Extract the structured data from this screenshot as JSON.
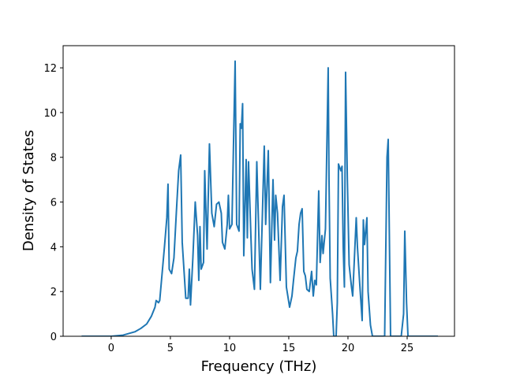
{
  "chart_data": {
    "type": "line",
    "xlabel": "Frequency (THz)",
    "ylabel": "Density of States",
    "color": "#1f77b4",
    "x": [
      -2.5,
      0,
      1,
      2,
      2.5,
      3,
      3.4,
      3.7,
      3.8,
      4.0,
      4.1,
      4.3,
      4.5,
      4.7,
      4.8,
      4.9,
      5.1,
      5.3,
      5.5,
      5.7,
      5.87,
      6.0,
      6.3,
      6.5,
      6.6,
      6.7,
      6.9,
      7.1,
      7.3,
      7.4,
      7.5,
      7.6,
      7.8,
      7.9,
      8.1,
      8.3,
      8.5,
      8.7,
      8.9,
      9.1,
      9.3,
      9.4,
      9.6,
      9.8,
      9.9,
      10.0,
      10.2,
      10.47,
      10.6,
      10.8,
      10.9,
      11.0,
      11.1,
      11.2,
      11.4,
      11.5,
      11.6,
      11.8,
      11.9,
      12.1,
      12.3,
      12.6,
      12.93,
      13.05,
      13.27,
      13.45,
      13.67,
      13.8,
      13.9,
      14.05,
      14.27,
      14.47,
      14.6,
      14.8,
      15.07,
      15.27,
      15.4,
      15.6,
      15.73,
      15.87,
      16.0,
      16.13,
      16.27,
      16.4,
      16.53,
      16.73,
      16.93,
      17.07,
      17.2,
      17.33,
      17.53,
      17.65,
      17.8,
      17.9,
      18.1,
      18.33,
      18.4,
      18.5,
      18.7,
      18.8,
      19.0,
      19.1,
      19.2,
      19.4,
      19.5,
      19.6,
      19.7,
      19.8,
      19.95,
      20.1,
      20.3,
      20.4,
      20.7,
      20.8,
      21.0,
      21.2,
      21.3,
      21.4,
      21.6,
      21.7,
      21.9,
      22.07,
      23.1,
      23.3,
      23.4,
      23.6,
      24.5,
      24.7,
      24.8,
      24.95,
      25.07,
      27.6
    ],
    "values": [
      0,
      0,
      0.05,
      0.2,
      0.35,
      0.55,
      0.9,
      1.3,
      1.6,
      1.5,
      1.6,
      2.8,
      4,
      5.3,
      6.8,
      3,
      2.8,
      3.5,
      5.5,
      7.4,
      8.1,
      4.2,
      1.7,
      1.7,
      3.0,
      1.4,
      3.5,
      6,
      4.5,
      2.5,
      4.9,
      3.0,
      3.3,
      7.4,
      3.9,
      8.6,
      5.5,
      4.9,
      5.9,
      6.0,
      5.5,
      4.2,
      3.9,
      5.0,
      6.3,
      4.8,
      5,
      12.3,
      5,
      4.7,
      9.5,
      9.3,
      10.4,
      3.6,
      7.9,
      4.4,
      7.8,
      4.5,
      3.0,
      2.1,
      7.8,
      2.1,
      8.5,
      5,
      8.3,
      2.4,
      7.0,
      4.3,
      6.3,
      5.5,
      2.5,
      5.8,
      6.3,
      2.2,
      1.3,
      1.8,
      2.5,
      3.5,
      3.8,
      5.0,
      5.5,
      5.7,
      2.9,
      2.7,
      2.1,
      2.0,
      2.9,
      1.8,
      2.5,
      2.3,
      6.5,
      3.3,
      4.5,
      3.7,
      4.8,
      12.0,
      7,
      2.6,
      1,
      0,
      0,
      1.5,
      7.7,
      7.4,
      7.6,
      4,
      2.2,
      11.8,
      7,
      3.2,
      2.2,
      1.8,
      5.3,
      4,
      2.3,
      0.7,
      5.2,
      4.1,
      5.3,
      2,
      0.5,
      0,
      0,
      8,
      8.8,
      0,
      0,
      1,
      4.7,
      1.5,
      0,
      0
    ],
    "xlim": [
      -4.06,
      29.0
    ],
    "ylim": [
      0,
      12.99
    ],
    "xticks": [
      0,
      5,
      10,
      15,
      20,
      25
    ],
    "yticks": [
      0,
      2,
      4,
      6,
      8,
      10,
      12
    ]
  }
}
